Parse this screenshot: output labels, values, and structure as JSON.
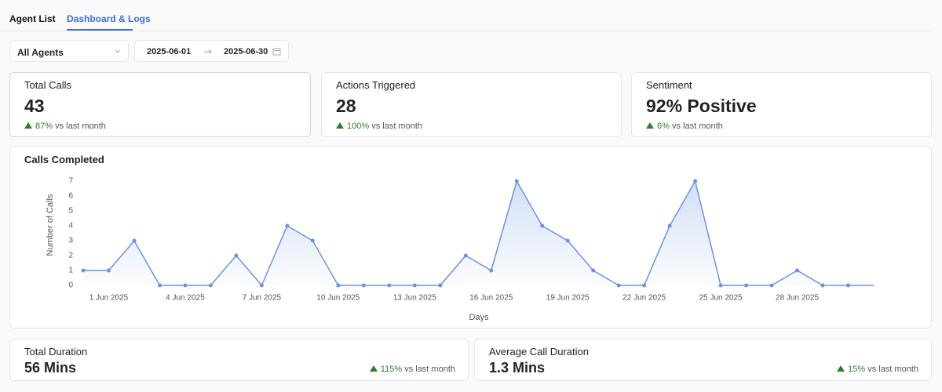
{
  "tabs": [
    "Agent List",
    "Dashboard & Logs"
  ],
  "filters": {
    "agent": "All Agents",
    "start_date": "2025-06-01",
    "end_date": "2025-06-30"
  },
  "stats": [
    {
      "title": "Total Calls",
      "value": "43",
      "change": "87%",
      "change_text": "vs last month"
    },
    {
      "title": "Actions Triggered",
      "value": "28",
      "change": "100%",
      "change_text": "vs last month"
    },
    {
      "title": "Sentiment",
      "value": "92% Positive",
      "change": "6%",
      "change_text": "vs last month"
    }
  ],
  "duration_stats": [
    {
      "title": "Total Duration",
      "value": "56 Mins",
      "change": "115%",
      "change_text": "vs last month"
    },
    {
      "title": "Average Call Duration",
      "value": "1.3 Mins",
      "change": "15%",
      "change_text": "vs last month"
    }
  ],
  "chart_data": {
    "type": "line",
    "title": "Calls Completed",
    "x_label": "Days",
    "y_label": "Number of Calls",
    "categories": [
      null,
      "1 Jun 2025",
      null,
      null,
      "4 Jun 2025",
      null,
      null,
      "7 Jun 2025",
      null,
      null,
      "10 Jun 2025",
      null,
      null,
      "13 Jun 2025",
      null,
      null,
      "16 Jun 2025",
      null,
      null,
      "19 Jun 2025",
      null,
      null,
      "22 Jun 2025",
      null,
      null,
      "25 Jun 2025",
      null,
      null,
      "28 Jun 2025",
      null,
      null,
      null
    ],
    "values": [
      1,
      1,
      3,
      0,
      0,
      0,
      2,
      0,
      4,
      3,
      0,
      0,
      0,
      0,
      0,
      2,
      1,
      7,
      4,
      3,
      1,
      0,
      0,
      4,
      7,
      0,
      0,
      0,
      1,
      0,
      0,
      0
    ],
    "color": "#6b93e0",
    "ylim": [
      0,
      7
    ],
    "yticks": [
      0,
      1,
      2,
      3,
      4,
      5,
      6,
      7
    ],
    "grid": false
  }
}
